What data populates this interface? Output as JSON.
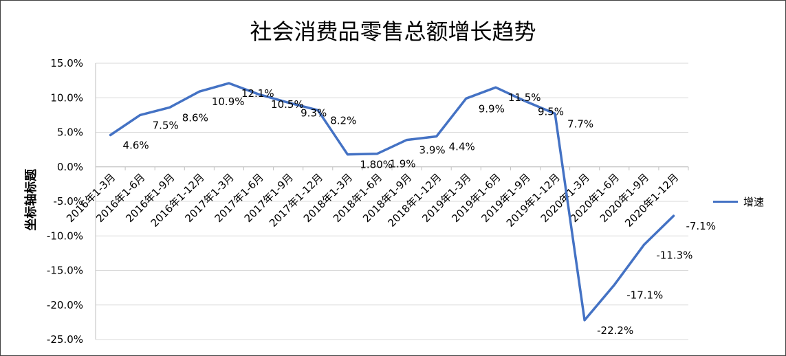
{
  "chart_data": {
    "type": "line",
    "title": "社会消费品零售总额增长趋势",
    "ylabel": "坐标轴标题",
    "xlabel": "",
    "categories": [
      "2016年1-3月",
      "2016年1-6月",
      "2016年1-9月",
      "2016年1-12月",
      "2017年1-3月",
      "2017年1-6月",
      "2017年1-9月",
      "2017年1-12月",
      "2018年1-3月",
      "2018年1-6月",
      "2018年1-9月",
      "2018年1-12月",
      "2019年1-3月",
      "2019年1-6月",
      "2019年1-9月",
      "2019年1-12月",
      "2020年1-3月",
      "2020年1-6月",
      "2020年1-9月",
      "2020年1-12月"
    ],
    "series": [
      {
        "name": "增速",
        "values": [
          4.6,
          7.5,
          8.6,
          10.9,
          12.1,
          10.5,
          9.3,
          8.2,
          1.8,
          1.9,
          3.9,
          4.4,
          9.9,
          11.5,
          9.5,
          7.7,
          -22.2,
          -17.1,
          -11.3,
          -7.1
        ],
        "labels": [
          "4.6%",
          "7.5%",
          "8.6%",
          "10.9%",
          "12.1%",
          "10.5%",
          "9.3%",
          "8.2%",
          "1.80%",
          "1.9%",
          "3.9%",
          "4.4%",
          "9.9%",
          "11.5%",
          "9.5%",
          "7.7%",
          "-22.2%",
          "-17.1%",
          "-11.3%",
          "-7.1%"
        ]
      }
    ],
    "yticks": [
      "15.0%",
      "10.0%",
      "5.0%",
      "0.0%",
      "-5.0%",
      "-10.0%",
      "-15.0%",
      "-20.0%",
      "-25.0%"
    ],
    "ylim": [
      -25,
      15
    ],
    "grid": true,
    "legend_position": "right",
    "colors": {
      "line": "#4472c4",
      "grid": "#d9d9d9"
    }
  }
}
